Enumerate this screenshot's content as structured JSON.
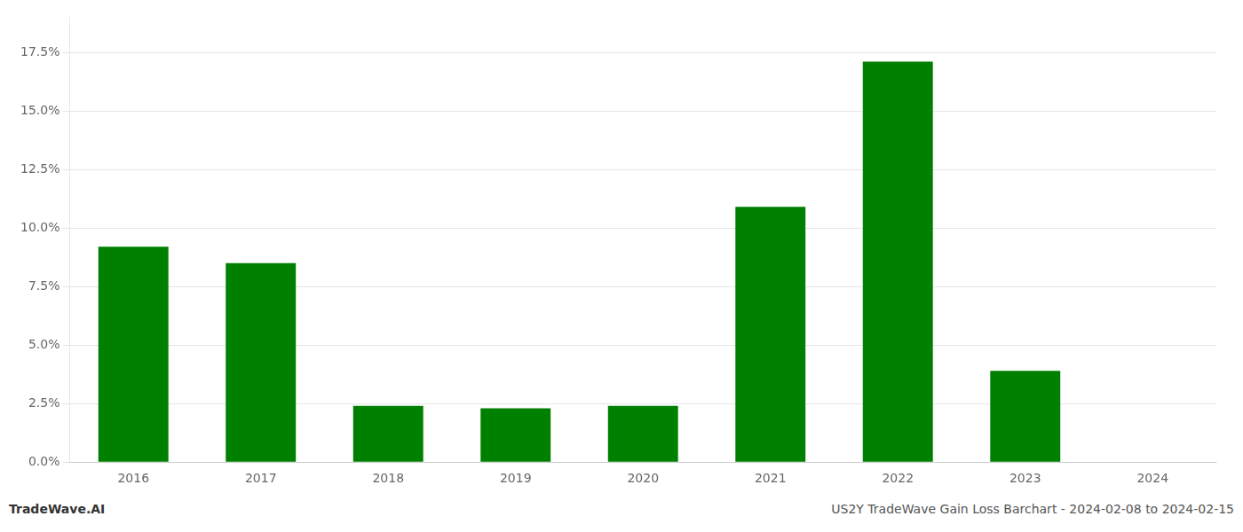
{
  "chart_data": {
    "type": "bar",
    "categories": [
      "2016",
      "2017",
      "2018",
      "2019",
      "2020",
      "2021",
      "2022",
      "2023",
      "2024"
    ],
    "values": [
      0.092,
      0.085,
      0.024,
      0.023,
      0.024,
      0.109,
      0.171,
      0.039,
      0.0
    ],
    "color": "#008000",
    "ylim": [
      0,
      0.19
    ],
    "yticks": [
      {
        "value": 0.0,
        "label": "0.0%"
      },
      {
        "value": 0.025,
        "label": "2.5%"
      },
      {
        "value": 0.05,
        "label": "5.0%"
      },
      {
        "value": 0.075,
        "label": "7.5%"
      },
      {
        "value": 0.1,
        "label": "10.0%"
      },
      {
        "value": 0.125,
        "label": "12.5%"
      },
      {
        "value": 0.15,
        "label": "15.0%"
      },
      {
        "value": 0.175,
        "label": "17.5%"
      }
    ],
    "grid": true,
    "annotations": [
      "TradeWave.AI",
      "US2Y TradeWave Gain Loss Barchart - 2024-02-08 to 2024-02-15"
    ]
  }
}
